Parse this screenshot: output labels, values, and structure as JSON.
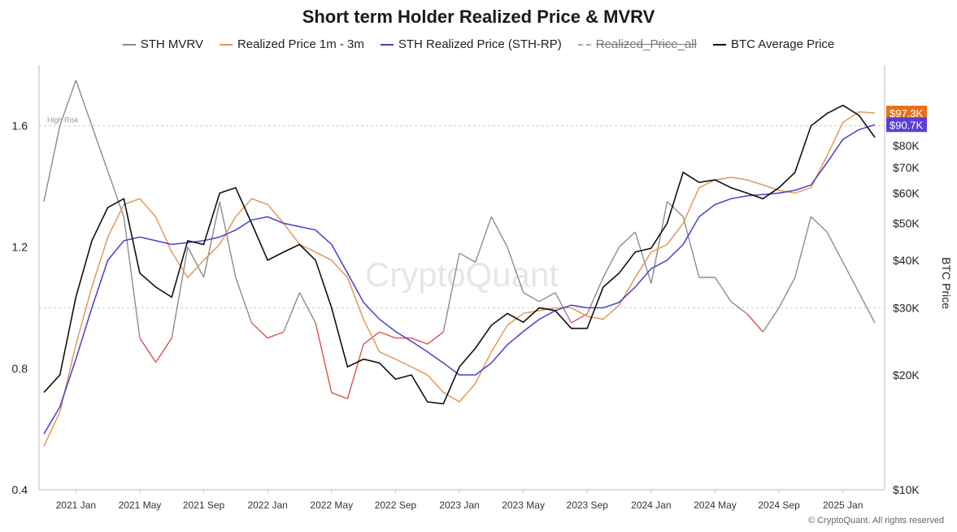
{
  "chart_data": {
    "type": "line",
    "title": "Short term Holder Realized Price & MVRV",
    "y2label": "BTC Price",
    "watermark": "CryptoQuant",
    "copyright": "© CryptoQuant. All rights reserved",
    "legend_position": "top-center",
    "grid": false,
    "x_ticks": [
      "2021 Jan",
      "2021 May",
      "2021 Sep",
      "2022 Jan",
      "2022 May",
      "2022 Sep",
      "2023 Jan",
      "2023 May",
      "2023 Sep",
      "2024 Jan",
      "2024 May",
      "2024 Sep",
      "2025 Jan"
    ],
    "y_left_ticks": [
      "1.6",
      "1.2",
      "0.8",
      "0.4"
    ],
    "y_left_range": [
      0.4,
      1.8
    ],
    "y_right_ticks": [
      "$80K",
      "$70K",
      "$60K",
      "$50K",
      "$40K",
      "$30K",
      "$20K",
      "$10K"
    ],
    "y_right_scale": "log",
    "y_right_range": [
      10000,
      130000
    ],
    "reference_lines": [
      {
        "label": "High Risk",
        "value": 1.6
      },
      {
        "label": "",
        "value": 1.0
      }
    ],
    "price_tags": [
      {
        "label": "$97.3K",
        "value": 97300,
        "color": "#e8711c"
      },
      {
        "label": "$90.7K",
        "value": 90700,
        "color": "#5b3fd4"
      }
    ],
    "series": [
      {
        "name": "STH MVRV",
        "axis": "left",
        "color": "#8c8c8c",
        "below_one_color": "#d9534f",
        "x": [
          "2020-11",
          "2020-12",
          "2021-01",
          "2021-02",
          "2021-03",
          "2021-04",
          "2021-05",
          "2021-06",
          "2021-07",
          "2021-08",
          "2021-09",
          "2021-10",
          "2021-11",
          "2021-12",
          "2022-01",
          "2022-02",
          "2022-03",
          "2022-04",
          "2022-05",
          "2022-06",
          "2022-07",
          "2022-08",
          "2022-09",
          "2022-10",
          "2022-11",
          "2022-12",
          "2023-01",
          "2023-02",
          "2023-03",
          "2023-04",
          "2023-05",
          "2023-06",
          "2023-07",
          "2023-08",
          "2023-09",
          "2023-10",
          "2023-11",
          "2023-12",
          "2024-01",
          "2024-02",
          "2024-03",
          "2024-04",
          "2024-05",
          "2024-06",
          "2024-07",
          "2024-08",
          "2024-09",
          "2024-10",
          "2024-11",
          "2024-12",
          "2025-01",
          "2025-02",
          "2025-03"
        ],
        "values": [
          1.35,
          1.6,
          1.75,
          1.6,
          1.45,
          1.3,
          0.9,
          0.82,
          0.9,
          1.2,
          1.1,
          1.35,
          1.1,
          0.95,
          0.9,
          0.92,
          1.05,
          0.95,
          0.72,
          0.7,
          0.88,
          0.92,
          0.9,
          0.9,
          0.88,
          0.92,
          1.18,
          1.15,
          1.3,
          1.2,
          1.05,
          1.02,
          1.05,
          0.95,
          0.98,
          1.1,
          1.2,
          1.25,
          1.08,
          1.35,
          1.3,
          1.1,
          1.1,
          1.02,
          0.98,
          0.92,
          1.0,
          1.1,
          1.3,
          1.25,
          1.15,
          1.05,
          0.95
        ]
      },
      {
        "name": "Realized Price 1m - 3m",
        "axis": "right",
        "color": "#e09a5c",
        "x": [
          "2020-11",
          "2020-12",
          "2021-01",
          "2021-02",
          "2021-03",
          "2021-04",
          "2021-05",
          "2021-06",
          "2021-07",
          "2021-08",
          "2021-09",
          "2021-10",
          "2021-11",
          "2021-12",
          "2022-01",
          "2022-02",
          "2022-03",
          "2022-04",
          "2022-05",
          "2022-06",
          "2022-07",
          "2022-08",
          "2022-09",
          "2022-10",
          "2022-11",
          "2022-12",
          "2023-01",
          "2023-02",
          "2023-03",
          "2023-04",
          "2023-05",
          "2023-06",
          "2023-07",
          "2023-08",
          "2023-09",
          "2023-10",
          "2023-11",
          "2023-12",
          "2024-01",
          "2024-02",
          "2024-03",
          "2024-04",
          "2024-05",
          "2024-06",
          "2024-07",
          "2024-08",
          "2024-09",
          "2024-10",
          "2024-11",
          "2024-12",
          "2025-01",
          "2025-02",
          "2025-03"
        ],
        "values": [
          13000,
          16000,
          24000,
          34000,
          46000,
          56000,
          58000,
          52000,
          42000,
          36000,
          40000,
          44000,
          52000,
          58000,
          56000,
          50000,
          44000,
          42000,
          40000,
          36000,
          28000,
          23000,
          22000,
          21000,
          20000,
          18000,
          17000,
          19000,
          23000,
          27000,
          29000,
          29500,
          30000,
          30000,
          28500,
          28000,
          30500,
          36000,
          42000,
          44000,
          50000,
          62000,
          65000,
          66000,
          65000,
          63000,
          61000,
          60000,
          62000,
          75000,
          92000,
          98000,
          97300
        ]
      },
      {
        "name": "STH Realized Price (STH-RP)",
        "axis": "right",
        "color": "#4b3fc8",
        "x": [
          "2020-11",
          "2020-12",
          "2021-01",
          "2021-02",
          "2021-03",
          "2021-04",
          "2021-05",
          "2021-06",
          "2021-07",
          "2021-08",
          "2021-09",
          "2021-10",
          "2021-11",
          "2021-12",
          "2022-01",
          "2022-02",
          "2022-03",
          "2022-04",
          "2022-05",
          "2022-06",
          "2022-07",
          "2022-08",
          "2022-09",
          "2022-10",
          "2022-11",
          "2022-12",
          "2023-01",
          "2023-02",
          "2023-03",
          "2023-04",
          "2023-05",
          "2023-06",
          "2023-07",
          "2023-08",
          "2023-09",
          "2023-10",
          "2023-11",
          "2023-12",
          "2024-01",
          "2024-02",
          "2024-03",
          "2024-04",
          "2024-05",
          "2024-06",
          "2024-07",
          "2024-08",
          "2024-09",
          "2024-10",
          "2024-11",
          "2024-12",
          "2025-01",
          "2025-02",
          "2025-03"
        ],
        "values": [
          14000,
          16500,
          22000,
          30000,
          40000,
          45000,
          46000,
          45000,
          44000,
          44500,
          45000,
          46000,
          48000,
          51000,
          52000,
          50000,
          49000,
          48000,
          44000,
          37000,
          31000,
          28000,
          26000,
          24500,
          23000,
          21500,
          20000,
          20000,
          21500,
          24000,
          26000,
          28000,
          29500,
          30500,
          30000,
          30000,
          31000,
          34000,
          38000,
          40000,
          44000,
          52000,
          56000,
          58000,
          59000,
          59500,
          60000,
          61000,
          63000,
          72000,
          83000,
          88000,
          90700
        ]
      },
      {
        "name": "Realized_Price_all",
        "axis": "right",
        "color": "#aaaaaa",
        "hidden": true,
        "values": []
      },
      {
        "name": "BTC Average Price",
        "axis": "right",
        "color": "#111111",
        "x": [
          "2020-11",
          "2020-12",
          "2021-01",
          "2021-02",
          "2021-03",
          "2021-04",
          "2021-05",
          "2021-06",
          "2021-07",
          "2021-08",
          "2021-09",
          "2021-10",
          "2021-11",
          "2021-12",
          "2022-01",
          "2022-02",
          "2022-03",
          "2022-04",
          "2022-05",
          "2022-06",
          "2022-07",
          "2022-08",
          "2022-09",
          "2022-10",
          "2022-11",
          "2022-12",
          "2023-01",
          "2023-02",
          "2023-03",
          "2023-04",
          "2023-05",
          "2023-06",
          "2023-07",
          "2023-08",
          "2023-09",
          "2023-10",
          "2023-11",
          "2023-12",
          "2024-01",
          "2024-02",
          "2024-03",
          "2024-04",
          "2024-05",
          "2024-06",
          "2024-07",
          "2024-08",
          "2024-09",
          "2024-10",
          "2024-11",
          "2024-12",
          "2025-01",
          "2025-02",
          "2025-03"
        ],
        "values": [
          18000,
          20000,
          32000,
          45000,
          55000,
          58000,
          37000,
          34000,
          32000,
          45000,
          44000,
          60000,
          62000,
          50000,
          40000,
          42000,
          44000,
          40000,
          30000,
          21000,
          22000,
          21500,
          19500,
          20000,
          17000,
          16800,
          21000,
          23500,
          27000,
          29000,
          27500,
          30000,
          29500,
          26500,
          26500,
          34000,
          37000,
          42000,
          43000,
          50000,
          68000,
          64000,
          65000,
          62000,
          60000,
          58000,
          62000,
          68000,
          90000,
          97000,
          102000,
          96000,
          84000
        ]
      }
    ]
  }
}
